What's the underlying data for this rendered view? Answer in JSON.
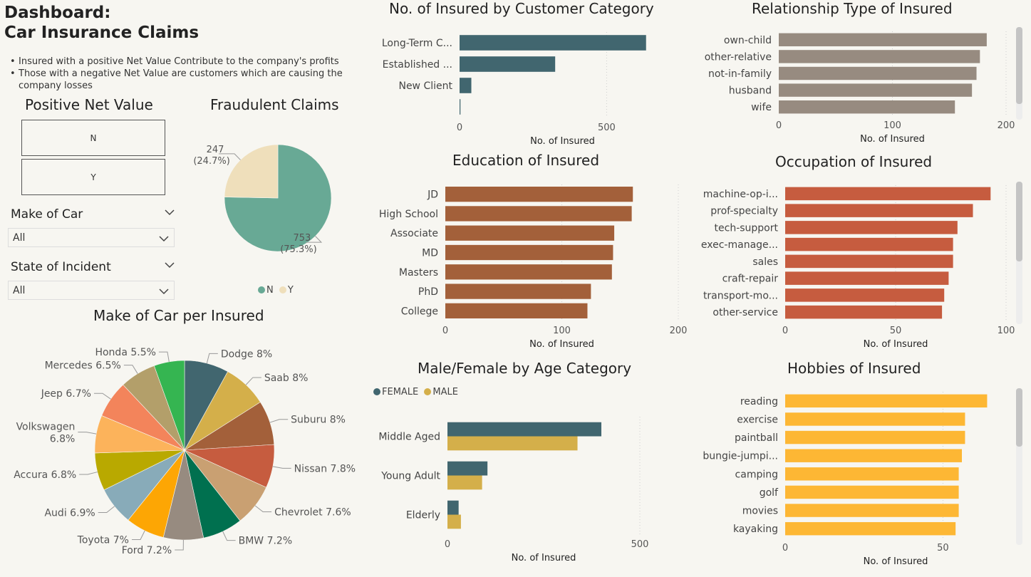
{
  "header": {
    "title_line1": "Dashboard:",
    "title_line2": "Car Insurance Claims",
    "note1": "Insured with a positive Net Value Contribute to the company's profits",
    "note2": "Those with a negative Net Value are customers which are causing the company losses"
  },
  "slicers": {
    "net_value_title": "Positive Net Value",
    "net_value_options": [
      "N",
      "Y"
    ],
    "make_label": "Make of Car",
    "make_value": "All",
    "state_label": "State of Incident",
    "state_value": "All"
  },
  "colors": {
    "teal_dark": "#41666f",
    "taupe": "#978b80",
    "rust": "#a3603a",
    "red_orange": "#c65c3f",
    "amber": "#fdb734",
    "mustard": "#d4af4a",
    "green_pie": "#68a995",
    "cream_pie": "#efdfbb"
  },
  "chart_data": [
    {
      "id": "fraud",
      "type": "pie",
      "title": "Fraudulent Claims",
      "slices": [
        {
          "label": "N",
          "value": 753,
          "pct": "75.3%",
          "color": "#68a995"
        },
        {
          "label": "Y",
          "value": 247,
          "pct": "24.7%",
          "color": "#efdfbb"
        }
      ],
      "legend": [
        "N",
        "Y"
      ],
      "legend_position": "bottom"
    },
    {
      "id": "make",
      "type": "pie",
      "title": "Make of Car per Insured",
      "slices": [
        {
          "label": "Dodge 8%",
          "value": 8.0,
          "color": "#41666f"
        },
        {
          "label": "Saab 8%",
          "value": 8.0,
          "color": "#d4af4a"
        },
        {
          "label": "Suburu 8%",
          "value": 8.0,
          "color": "#a3603a"
        },
        {
          "label": "Nissan 7.8%",
          "value": 7.8,
          "color": "#c65c3f"
        },
        {
          "label": "Chevrolet 7.6%",
          "value": 7.6,
          "color": "#c9a072"
        },
        {
          "label": "BMW 7.2%",
          "value": 7.2,
          "color": "#00704f"
        },
        {
          "label": "Ford 7.2%",
          "value": 7.2,
          "color": "#978b80"
        },
        {
          "label": "Toyota 7%",
          "value": 7.0,
          "color": "#fda604"
        },
        {
          "label": "Audi 6.9%",
          "value": 6.9,
          "color": "#88abb9"
        },
        {
          "label": "Accura 6.8%",
          "value": 6.8,
          "color": "#b9a900"
        },
        {
          "label": "Volkswagen 6.8%",
          "value": 6.8,
          "color": "#fcb35b"
        },
        {
          "label": "Jeep 6.7%",
          "value": 6.7,
          "color": "#f3845b"
        },
        {
          "label": "Mercedes 6.5%",
          "value": 6.5,
          "color": "#b39f6a"
        },
        {
          "label": "Honda 5.5%",
          "value": 5.5,
          "color": "#35b551"
        }
      ]
    },
    {
      "id": "category",
      "type": "bar",
      "orientation": "horizontal",
      "title": "No. of Insured by Customer Category",
      "xlabel": "No. of Insured",
      "categories": [
        "Long-Term C...",
        "Established ...",
        "New Client",
        ""
      ],
      "values": [
        634,
        325,
        40,
        3
      ],
      "xlim": [
        0,
        700
      ],
      "ticks": [
        0,
        500
      ],
      "color": "#41666f",
      "grid": true
    },
    {
      "id": "relationship",
      "type": "bar",
      "orientation": "horizontal",
      "title": "Relationship Type of Insured",
      "xlabel": "No. of Insured",
      "categories": [
        "own-child",
        "other-relative",
        "not-in-family",
        "husband",
        "wife"
      ],
      "values": [
        183,
        177,
        174,
        170,
        155
      ],
      "xlim": [
        0,
        200
      ],
      "ticks": [
        0,
        100,
        200
      ],
      "color": "#978b80",
      "grid": true
    },
    {
      "id": "education",
      "type": "bar",
      "orientation": "horizontal",
      "title": "Education of Insured",
      "xlabel": "No. of Insured",
      "categories": [
        "JD",
        "High School",
        "Associate",
        "MD",
        "Masters",
        "PhD",
        "College"
      ],
      "values": [
        161,
        160,
        145,
        144,
        143,
        125,
        122
      ],
      "xlim": [
        0,
        200
      ],
      "ticks": [
        0,
        100,
        200
      ],
      "color": "#a3603a",
      "grid": true
    },
    {
      "id": "occupation",
      "type": "bar",
      "orientation": "horizontal",
      "title": "Occupation of Insured",
      "xlabel": "No. of Insured",
      "categories": [
        "machine-op-i...",
        "prof-specialty",
        "tech-support",
        "exec-manage...",
        "sales",
        "craft-repair",
        "transport-mo...",
        "other-service"
      ],
      "values": [
        93,
        85,
        78,
        76,
        76,
        74,
        72,
        71
      ],
      "xlim": [
        0,
        100
      ],
      "ticks": [
        0,
        50,
        100
      ],
      "color": "#c65c3f",
      "grid": true
    },
    {
      "id": "gender_age",
      "type": "bar",
      "orientation": "horizontal",
      "title": "Male/Female by Age Category",
      "xlabel": "No. of Insured",
      "categories": [
        "Middle Aged",
        "Young Adult",
        "Elderly"
      ],
      "series": [
        {
          "name": "FEMALE",
          "values": [
            400,
            104,
            29
          ],
          "color": "#41666f"
        },
        {
          "name": "MALE",
          "values": [
            338,
            90,
            35
          ],
          "color": "#d4af4a"
        }
      ],
      "xlim": [
        0,
        500
      ],
      "ticks": [
        0,
        500
      ],
      "legend_position": "top-left",
      "grid": true
    },
    {
      "id": "hobbies",
      "type": "bar",
      "orientation": "horizontal",
      "title": "Hobbies of Insured",
      "xlabel": "No. of Insured",
      "categories": [
        "reading",
        "exercise",
        "paintball",
        "bungie-jumpi...",
        "camping",
        "golf",
        "movies",
        "kayaking"
      ],
      "values": [
        64,
        57,
        57,
        56,
        55,
        55,
        55,
        54
      ],
      "xlim": [
        0,
        70
      ],
      "ticks": [
        0,
        50
      ],
      "color": "#fdb734",
      "grid": true
    }
  ]
}
